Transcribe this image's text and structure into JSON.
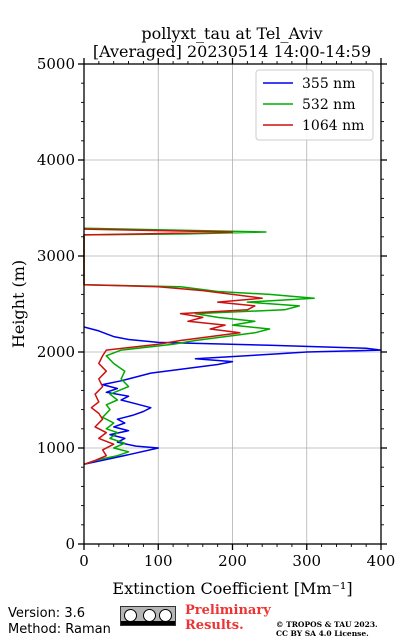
{
  "chart_data": {
    "type": "line",
    "title": [
      "pollyxt_tau at Tel_Aviv",
      "[Averaged] 20230514 14:00-14:59"
    ],
    "xlabel": "Extinction Coefficient [Mm⁻¹]",
    "ylabel": "Height (m)",
    "xlim": [
      0,
      400
    ],
    "ylim": [
      0,
      5000
    ],
    "xticks": [
      "0",
      "100",
      "200",
      "300",
      "400"
    ],
    "yticks": [
      "0",
      "1000",
      "2000",
      "3000",
      "4000",
      "5000"
    ],
    "grid": true,
    "legend_position": "top-right",
    "series": [
      {
        "name": "355 nm",
        "color": "#0000ee",
        "points": [
          [
            0,
            830
          ],
          [
            30,
            880
          ],
          [
            60,
            930
          ],
          [
            100,
            1000
          ],
          [
            70,
            1020
          ],
          [
            45,
            1060
          ],
          [
            55,
            1100
          ],
          [
            35,
            1140
          ],
          [
            60,
            1180
          ],
          [
            40,
            1220
          ],
          [
            55,
            1260
          ],
          [
            45,
            1300
          ],
          [
            65,
            1340
          ],
          [
            80,
            1380
          ],
          [
            90,
            1420
          ],
          [
            70,
            1460
          ],
          [
            50,
            1500
          ],
          [
            60,
            1540
          ],
          [
            30,
            1580
          ],
          [
            45,
            1620
          ],
          [
            25,
            1660
          ],
          [
            50,
            1700
          ],
          [
            70,
            1740
          ],
          [
            90,
            1780
          ],
          [
            120,
            1810
          ],
          [
            150,
            1840
          ],
          [
            180,
            1870
          ],
          [
            200,
            1900
          ],
          [
            150,
            1930
          ],
          [
            260,
            1980
          ],
          [
            300,
            2000
          ],
          [
            400,
            2020
          ],
          [
            380,
            2040
          ],
          [
            250,
            2070
          ],
          [
            100,
            2100
          ],
          [
            60,
            2130
          ],
          [
            40,
            2160
          ],
          [
            30,
            2190
          ],
          [
            20,
            2220
          ],
          [
            0,
            2260
          ]
        ]
      },
      {
        "name": "532 nm",
        "color": "#00aa00",
        "points": [
          [
            0,
            830
          ],
          [
            20,
            880
          ],
          [
            45,
            920
          ],
          [
            60,
            960
          ],
          [
            40,
            1000
          ],
          [
            55,
            1050
          ],
          [
            35,
            1100
          ],
          [
            45,
            1160
          ],
          [
            30,
            1200
          ],
          [
            40,
            1260
          ],
          [
            25,
            1320
          ],
          [
            35,
            1400
          ],
          [
            30,
            1450
          ],
          [
            45,
            1500
          ],
          [
            35,
            1560
          ],
          [
            60,
            1640
          ],
          [
            50,
            1720
          ],
          [
            55,
            1800
          ],
          [
            40,
            1880
          ],
          [
            30,
            1960
          ],
          [
            50,
            2020
          ],
          [
            120,
            2080
          ],
          [
            150,
            2120
          ],
          [
            230,
            2200
          ],
          [
            250,
            2240
          ],
          [
            200,
            2280
          ],
          [
            230,
            2320
          ],
          [
            180,
            2360
          ],
          [
            150,
            2400
          ],
          [
            270,
            2440
          ],
          [
            290,
            2480
          ],
          [
            220,
            2520
          ],
          [
            310,
            2560
          ],
          [
            250,
            2600
          ],
          [
            180,
            2630
          ],
          [
            130,
            2680
          ],
          [
            0,
            2700
          ],
          [
            0,
            3220
          ],
          [
            140,
            3230
          ],
          [
            245,
            3250
          ],
          [
            0,
            3290
          ]
        ]
      },
      {
        "name": "1064 nm",
        "color": "#cc1111",
        "points": [
          [
            0,
            830
          ],
          [
            15,
            870
          ],
          [
            30,
            920
          ],
          [
            25,
            980
          ],
          [
            40,
            1040
          ],
          [
            20,
            1100
          ],
          [
            30,
            1160
          ],
          [
            15,
            1220
          ],
          [
            25,
            1300
          ],
          [
            20,
            1360
          ],
          [
            10,
            1420
          ],
          [
            20,
            1480
          ],
          [
            15,
            1560
          ],
          [
            25,
            1640
          ],
          [
            20,
            1720
          ],
          [
            30,
            1800
          ],
          [
            20,
            1880
          ],
          [
            25,
            1960
          ],
          [
            30,
            2020
          ],
          [
            100,
            2080
          ],
          [
            130,
            2120
          ],
          [
            210,
            2200
          ],
          [
            170,
            2240
          ],
          [
            190,
            2280
          ],
          [
            140,
            2320
          ],
          [
            160,
            2360
          ],
          [
            130,
            2400
          ],
          [
            220,
            2440
          ],
          [
            230,
            2480
          ],
          [
            180,
            2520
          ],
          [
            240,
            2560
          ],
          [
            200,
            2600
          ],
          [
            160,
            2640
          ],
          [
            100,
            2680
          ],
          [
            0,
            2700
          ],
          [
            0,
            3220
          ],
          [
            80,
            3230
          ],
          [
            200,
            3250
          ],
          [
            0,
            3280
          ]
        ]
      }
    ]
  },
  "footer": {
    "version": "Version: 3.6",
    "method": "Method: Raman",
    "preliminary": [
      "Preliminary",
      "Results."
    ],
    "copyright": [
      "© TROPOS & TAU 2023.",
      "CC BY SA 4.0 License."
    ]
  }
}
